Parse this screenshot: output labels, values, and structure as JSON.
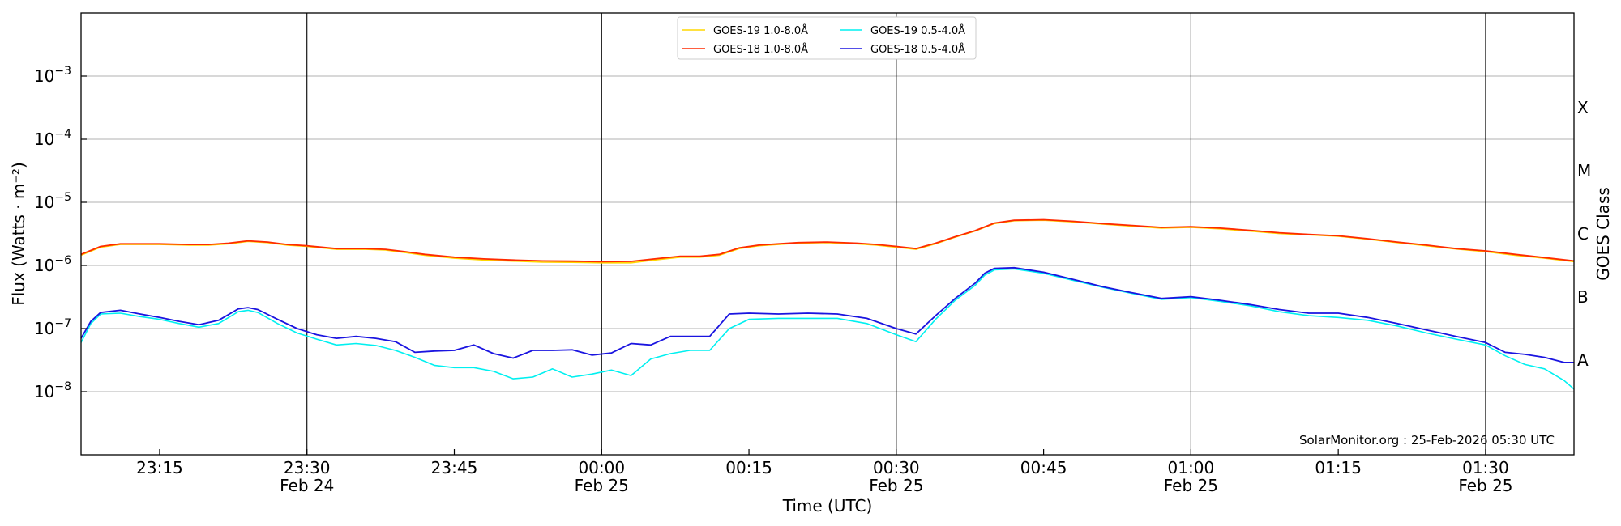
{
  "chart_data": {
    "type": "line",
    "xlabel": "Time (UTC)",
    "ylabel": "Flux (Watts · m⁻²)",
    "y2label": "GOES Class",
    "yscale": "log",
    "ylim": [
      1e-09,
      0.01
    ],
    "xlim": [
      "2026-02-24 23:07",
      "2026-02-25 01:39"
    ],
    "grid": "horizontal at each decade; vertical lines at half-hour marks",
    "legend_position": "top-center",
    "credit": "SolarMonitor.org : 25-Feb-2026 05:30 UTC",
    "y_ticks": [
      {
        "value": 1e-08,
        "base": "10",
        "exp": "−8"
      },
      {
        "value": 1e-07,
        "base": "10",
        "exp": "−7"
      },
      {
        "value": 1e-06,
        "base": "10",
        "exp": "−6"
      },
      {
        "value": 1e-05,
        "base": "10",
        "exp": "−5"
      },
      {
        "value": 0.0001,
        "base": "10",
        "exp": "−4"
      },
      {
        "value": 0.001,
        "base": "10",
        "exp": "−3"
      }
    ],
    "x_ticks": [
      {
        "time": "23:15",
        "line1": "23:15",
        "line2": ""
      },
      {
        "time": "23:30",
        "line1": "23:30",
        "line2": "Feb 24"
      },
      {
        "time": "23:45",
        "line1": "23:45",
        "line2": ""
      },
      {
        "time": "00:00",
        "line1": "00:00",
        "line2": "Feb 25"
      },
      {
        "time": "00:15",
        "line1": "00:15",
        "line2": ""
      },
      {
        "time": "00:30",
        "line1": "00:30",
        "line2": "Feb 25"
      },
      {
        "time": "00:45",
        "line1": "00:45",
        "line2": ""
      },
      {
        "time": "01:00",
        "line1": "01:00",
        "line2": "Feb 25"
      },
      {
        "time": "01:15",
        "line1": "01:15",
        "line2": ""
      },
      {
        "time": "01:30",
        "line1": "01:30",
        "line2": "Feb 25"
      }
    ],
    "vertical_lines": [
      "23:30",
      "00:00",
      "00:30",
      "01:00",
      "01:30"
    ],
    "goes_classes": [
      {
        "label": "A",
        "flux": 3.16e-08
      },
      {
        "label": "B",
        "flux": 3.16e-07
      },
      {
        "label": "C",
        "flux": 3.16e-06
      },
      {
        "label": "M",
        "flux": 3.16e-05
      },
      {
        "label": "X",
        "flux": 0.000316
      }
    ],
    "series": [
      {
        "name": "GOES-19 1.0-8.0Å",
        "color": "#ffd700",
        "x": [
          "23:07",
          "23:09",
          "23:11",
          "23:13",
          "23:15",
          "23:18",
          "23:20",
          "23:22",
          "23:24",
          "23:26",
          "23:28",
          "23:30",
          "23:33",
          "23:36",
          "23:38",
          "23:40",
          "23:42",
          "23:45",
          "23:48",
          "23:51",
          "23:54",
          "23:57",
          "00:00",
          "00:03",
          "00:05",
          "00:08",
          "00:10",
          "00:12",
          "00:14",
          "00:16",
          "00:18",
          "00:20",
          "00:23",
          "00:26",
          "00:28",
          "00:30",
          "00:32",
          "00:34",
          "00:36",
          "00:38",
          "00:40",
          "00:42",
          "00:45",
          "00:48",
          "00:51",
          "00:54",
          "00:57",
          "01:00",
          "01:03",
          "01:06",
          "01:09",
          "01:12",
          "01:15",
          "01:18",
          "01:21",
          "01:24",
          "01:27",
          "01:30",
          "01:33",
          "01:36",
          "01:39"
        ],
        "values": [
          1.45e-06,
          1.95e-06,
          2.15e-06,
          2.15e-06,
          2.15e-06,
          2.1e-06,
          2.1e-06,
          2.2e-06,
          2.4e-06,
          2.3e-06,
          2.1e-06,
          2e-06,
          1.8e-06,
          1.8e-06,
          1.75e-06,
          1.6e-06,
          1.45e-06,
          1.3e-06,
          1.22e-06,
          1.17e-06,
          1.13e-06,
          1.12e-06,
          1.1e-06,
          1.1e-06,
          1.2e-06,
          1.35e-06,
          1.35e-06,
          1.45e-06,
          1.85e-06,
          2.05e-06,
          2.15e-06,
          2.25e-06,
          2.3e-06,
          2.2e-06,
          2.1e-06,
          1.95e-06,
          1.8e-06,
          2.2e-06,
          2.8e-06,
          3.5e-06,
          4.6e-06,
          5.1e-06,
          5.2e-06,
          4.9e-06,
          4.5e-06,
          4.2e-06,
          3.9e-06,
          4e-06,
          3.8e-06,
          3.5e-06,
          3.2e-06,
          3.05e-06,
          2.9e-06,
          2.6e-06,
          2.3e-06,
          2.05e-06,
          1.82e-06,
          1.65e-06,
          1.45e-06,
          1.3e-06,
          1.15e-06
        ]
      },
      {
        "name": "GOES-18 1.0-8.0Å",
        "color": "#ff2a00",
        "x": [
          "23:07",
          "23:09",
          "23:11",
          "23:13",
          "23:15",
          "23:18",
          "23:20",
          "23:22",
          "23:24",
          "23:26",
          "23:28",
          "23:30",
          "23:33",
          "23:36",
          "23:38",
          "23:40",
          "23:42",
          "23:45",
          "23:48",
          "23:51",
          "23:54",
          "23:57",
          "00:00",
          "00:03",
          "00:05",
          "00:08",
          "00:10",
          "00:12",
          "00:14",
          "00:16",
          "00:18",
          "00:20",
          "00:23",
          "00:26",
          "00:28",
          "00:30",
          "00:32",
          "00:34",
          "00:36",
          "00:38",
          "00:40",
          "00:42",
          "00:45",
          "00:48",
          "00:51",
          "00:54",
          "00:57",
          "01:00",
          "01:03",
          "01:06",
          "01:09",
          "01:12",
          "01:15",
          "01:18",
          "01:21",
          "01:24",
          "01:27",
          "01:30",
          "01:33",
          "01:36",
          "01:39"
        ],
        "values": [
          1.5e-06,
          2e-06,
          2.2e-06,
          2.2e-06,
          2.2e-06,
          2.15e-06,
          2.15e-06,
          2.25e-06,
          2.45e-06,
          2.35e-06,
          2.15e-06,
          2.05e-06,
          1.85e-06,
          1.85e-06,
          1.8e-06,
          1.65e-06,
          1.5e-06,
          1.35e-06,
          1.27e-06,
          1.22e-06,
          1.18e-06,
          1.17e-06,
          1.15e-06,
          1.16e-06,
          1.25e-06,
          1.4e-06,
          1.4e-06,
          1.5e-06,
          1.9e-06,
          2.1e-06,
          2.2e-06,
          2.3e-06,
          2.35e-06,
          2.25e-06,
          2.15e-06,
          2e-06,
          1.85e-06,
          2.25e-06,
          2.85e-06,
          3.55e-06,
          4.7e-06,
          5.2e-06,
          5.3e-06,
          5e-06,
          4.6e-06,
          4.3e-06,
          4e-06,
          4.1e-06,
          3.9e-06,
          3.6e-06,
          3.3e-06,
          3.1e-06,
          2.95e-06,
          2.65e-06,
          2.35e-06,
          2.1e-06,
          1.85e-06,
          1.7e-06,
          1.5e-06,
          1.33e-06,
          1.18e-06
        ]
      },
      {
        "name": "GOES-19 0.5-4.0Å",
        "color": "#00f0f0",
        "x": [
          "23:07",
          "23:08",
          "23:09",
          "23:11",
          "23:13",
          "23:15",
          "23:17",
          "23:19",
          "23:21",
          "23:23",
          "23:24",
          "23:25",
          "23:27",
          "23:29",
          "23:31",
          "23:33",
          "23:35",
          "23:37",
          "23:39",
          "23:41",
          "23:43",
          "23:45",
          "23:47",
          "23:49",
          "23:51",
          "23:53",
          "23:55",
          "23:57",
          "23:59",
          "00:01",
          "00:03",
          "00:05",
          "00:07",
          "00:09",
          "00:11",
          "00:13",
          "00:15",
          "00:18",
          "00:21",
          "00:24",
          "00:27",
          "00:30",
          "00:32",
          "00:34",
          "00:36",
          "00:38",
          "00:39",
          "00:40",
          "00:42",
          "00:45",
          "00:48",
          "00:51",
          "00:54",
          "00:57",
          "01:00",
          "01:03",
          "01:06",
          "01:09",
          "01:12",
          "01:15",
          "01:18",
          "01:21",
          "01:24",
          "01:27",
          "01:30",
          "01:32",
          "01:34",
          "01:36",
          "01:38",
          "01:39"
        ],
        "values": [
          6e-08,
          1.2e-07,
          1.7e-07,
          1.75e-07,
          1.55e-07,
          1.4e-07,
          1.2e-07,
          1.05e-07,
          1.2e-07,
          1.85e-07,
          1.95e-07,
          1.8e-07,
          1.2e-07,
          8.5e-08,
          6.8e-08,
          5.5e-08,
          5.8e-08,
          5.4e-08,
          4.5e-08,
          3.5e-08,
          2.6e-08,
          2.4e-08,
          2.4e-08,
          2.1e-08,
          1.6e-08,
          1.7e-08,
          2.3e-08,
          1.7e-08,
          1.9e-08,
          2.2e-08,
          1.8e-08,
          3.3e-08,
          4e-08,
          4.5e-08,
          4.5e-08,
          1e-07,
          1.4e-07,
          1.45e-07,
          1.45e-07,
          1.45e-07,
          1.2e-07,
          8e-08,
          6.2e-08,
          1.4e-07,
          2.8e-07,
          4.8e-07,
          7e-07,
          8.5e-07,
          8.8e-07,
          7.5e-07,
          5.8e-07,
          4.5e-07,
          3.6e-07,
          2.9e-07,
          3.1e-07,
          2.7e-07,
          2.3e-07,
          1.85e-07,
          1.6e-07,
          1.5e-07,
          1.35e-07,
          1.1e-07,
          8.5e-08,
          6.8e-08,
          5.5e-08,
          3.7e-08,
          2.7e-08,
          2.3e-08,
          1.5e-08,
          1.1e-08
        ]
      },
      {
        "name": "GOES-18 0.5-4.0Å",
        "color": "#1a14e0",
        "x": [
          "23:07",
          "23:08",
          "23:09",
          "23:11",
          "23:13",
          "23:15",
          "23:17",
          "23:19",
          "23:21",
          "23:23",
          "23:24",
          "23:25",
          "23:27",
          "23:29",
          "23:31",
          "23:33",
          "23:35",
          "23:37",
          "23:39",
          "23:41",
          "23:43",
          "23:45",
          "23:47",
          "23:49",
          "23:51",
          "23:53",
          "23:55",
          "23:57",
          "23:59",
          "00:01",
          "00:03",
          "00:05",
          "00:07",
          "00:09",
          "00:11",
          "00:13",
          "00:15",
          "00:18",
          "00:21",
          "00:24",
          "00:27",
          "00:30",
          "00:32",
          "00:34",
          "00:36",
          "00:38",
          "00:39",
          "00:40",
          "00:42",
          "00:45",
          "00:48",
          "00:51",
          "00:54",
          "00:57",
          "01:00",
          "01:03",
          "01:06",
          "01:09",
          "01:12",
          "01:15",
          "01:18",
          "01:21",
          "01:24",
          "01:27",
          "01:30",
          "01:32",
          "01:34",
          "01:36",
          "01:38",
          "01:39"
        ],
        "values": [
          7e-08,
          1.3e-07,
          1.8e-07,
          1.95e-07,
          1.7e-07,
          1.5e-07,
          1.3e-07,
          1.15e-07,
          1.35e-07,
          2.05e-07,
          2.15e-07,
          2e-07,
          1.4e-07,
          1e-07,
          8e-08,
          7e-08,
          7.5e-08,
          7e-08,
          6.2e-08,
          4.2e-08,
          4.4e-08,
          4.5e-08,
          5.5e-08,
          4e-08,
          3.4e-08,
          4.5e-08,
          4.5e-08,
          4.6e-08,
          3.8e-08,
          4.1e-08,
          5.8e-08,
          5.5e-08,
          7.5e-08,
          7.5e-08,
          7.5e-08,
          1.7e-07,
          1.75e-07,
          1.7e-07,
          1.75e-07,
          1.7e-07,
          1.45e-07,
          1e-07,
          8.2e-08,
          1.6e-07,
          3e-07,
          5.2e-07,
          7.5e-07,
          9e-07,
          9.2e-07,
          7.8e-07,
          6e-07,
          4.6e-07,
          3.7e-07,
          3e-07,
          3.2e-07,
          2.8e-07,
          2.4e-07,
          2e-07,
          1.75e-07,
          1.75e-07,
          1.5e-07,
          1.2e-07,
          9.5e-08,
          7.5e-08,
          6e-08,
          4.2e-08,
          3.9e-08,
          3.5e-08,
          2.9e-08,
          2.9e-08
        ]
      }
    ]
  }
}
